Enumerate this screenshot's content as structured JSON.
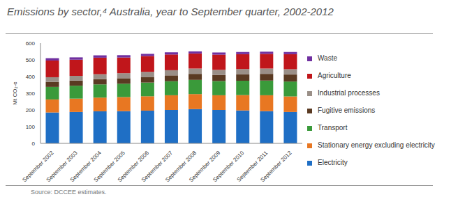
{
  "chart_data": {
    "type": "bar",
    "title": "Emissions by sector,⁴ Australia, year to September quarter, 2002-2012",
    "source": "Source: DCCEE estimates.",
    "y_label": "Mt CO₂-e",
    "categories": [
      "September 2002",
      "September 2003",
      "September 2004",
      "September 2005",
      "September 2006",
      "September 2007",
      "September 2008",
      "September 2009",
      "September 2010",
      "September 2011",
      "September 2012"
    ],
    "stacked": true,
    "grid": false,
    "legend": "right",
    "ylim": [
      0,
      600
    ],
    "yticks": [
      0,
      100,
      200,
      300,
      400,
      500,
      600
    ],
    "series": [
      {
        "name": "Electricity",
        "color": "#1f6fc5",
        "values": [
          185,
          188,
          192,
          193,
          196,
          200,
          205,
          200,
          197,
          193,
          188
        ]
      },
      {
        "name": "Stationary energy excluding electricity",
        "color": "#e87722",
        "values": [
          78,
          80,
          82,
          84,
          86,
          88,
          90,
          88,
          92,
          95,
          93
        ]
      },
      {
        "name": "Transport",
        "color": "#3a9a3a",
        "values": [
          75,
          77,
          79,
          80,
          82,
          84,
          85,
          85,
          86,
          88,
          89
        ]
      },
      {
        "name": "Fugitive emissions",
        "color": "#5a3a22",
        "values": [
          30,
          31,
          32,
          33,
          34,
          35,
          36,
          37,
          38,
          40,
          42
        ]
      },
      {
        "name": "Industrial processes",
        "color": "#9a8f87",
        "values": [
          28,
          28,
          29,
          30,
          30,
          31,
          32,
          30,
          32,
          32,
          32
        ]
      },
      {
        "name": "Agriculture",
        "color": "#c0161b",
        "values": [
          100,
          97,
          99,
          94,
          95,
          94,
          90,
          91,
          89,
          88,
          90
        ]
      },
      {
        "name": "Waste",
        "color": "#7030a0",
        "values": [
          14,
          14,
          14,
          14,
          13,
          13,
          13,
          13,
          13,
          13,
          13
        ]
      }
    ]
  }
}
